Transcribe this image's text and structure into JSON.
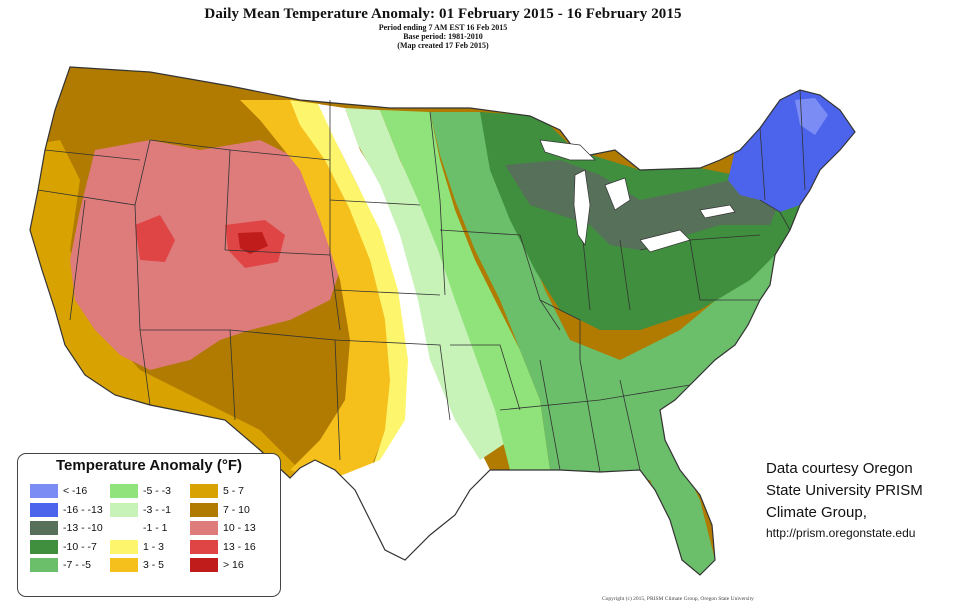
{
  "header": {
    "title": "Daily Mean Temperature Anomaly: 01 February 2015 - 16 February 2015",
    "period": "Period ending 7 AM EST 16 Feb 2015",
    "base": "Base period: 1981-2010",
    "created": "(Map created 17 Feb 2015)"
  },
  "legend": {
    "title": "Temperature Anomaly (°F)",
    "items": [
      {
        "label": "< -16",
        "color": "#7b8cf5"
      },
      {
        "label": "-16 - -13",
        "color": "#4c63ec"
      },
      {
        "label": "-13 - -10",
        "color": "#57705a"
      },
      {
        "label": "-10 - -7",
        "color": "#3f8f3f"
      },
      {
        "label": "-7 - -5",
        "color": "#6bbf6b"
      },
      {
        "label": "-5 - -3",
        "color": "#90e37a"
      },
      {
        "label": "-3 - -1",
        "color": "#c7f2b8"
      },
      {
        "label": "-1 - 1",
        "color": "#ffffff"
      },
      {
        "label": "1 - 3",
        "color": "#fdf66d"
      },
      {
        "label": "3 - 5",
        "color": "#f5bf1c"
      },
      {
        "label": "5 - 7",
        "color": "#d8a200"
      },
      {
        "label": "7 - 10",
        "color": "#b07b00"
      },
      {
        "label": "10 - 13",
        "color": "#de7b7b"
      },
      {
        "label": "13 - 16",
        "color": "#e04545"
      },
      {
        "label": "> 16",
        "color": "#c01c1c"
      }
    ]
  },
  "credit": {
    "line1": "Data courtesy Oregon",
    "line2": "State University PRISM",
    "line3": "Climate Group,",
    "url": "http://prism.oregonstate.edu"
  },
  "copyright": "Copyright (c) 2015, PRISM Climate Group, Oregon State University"
}
